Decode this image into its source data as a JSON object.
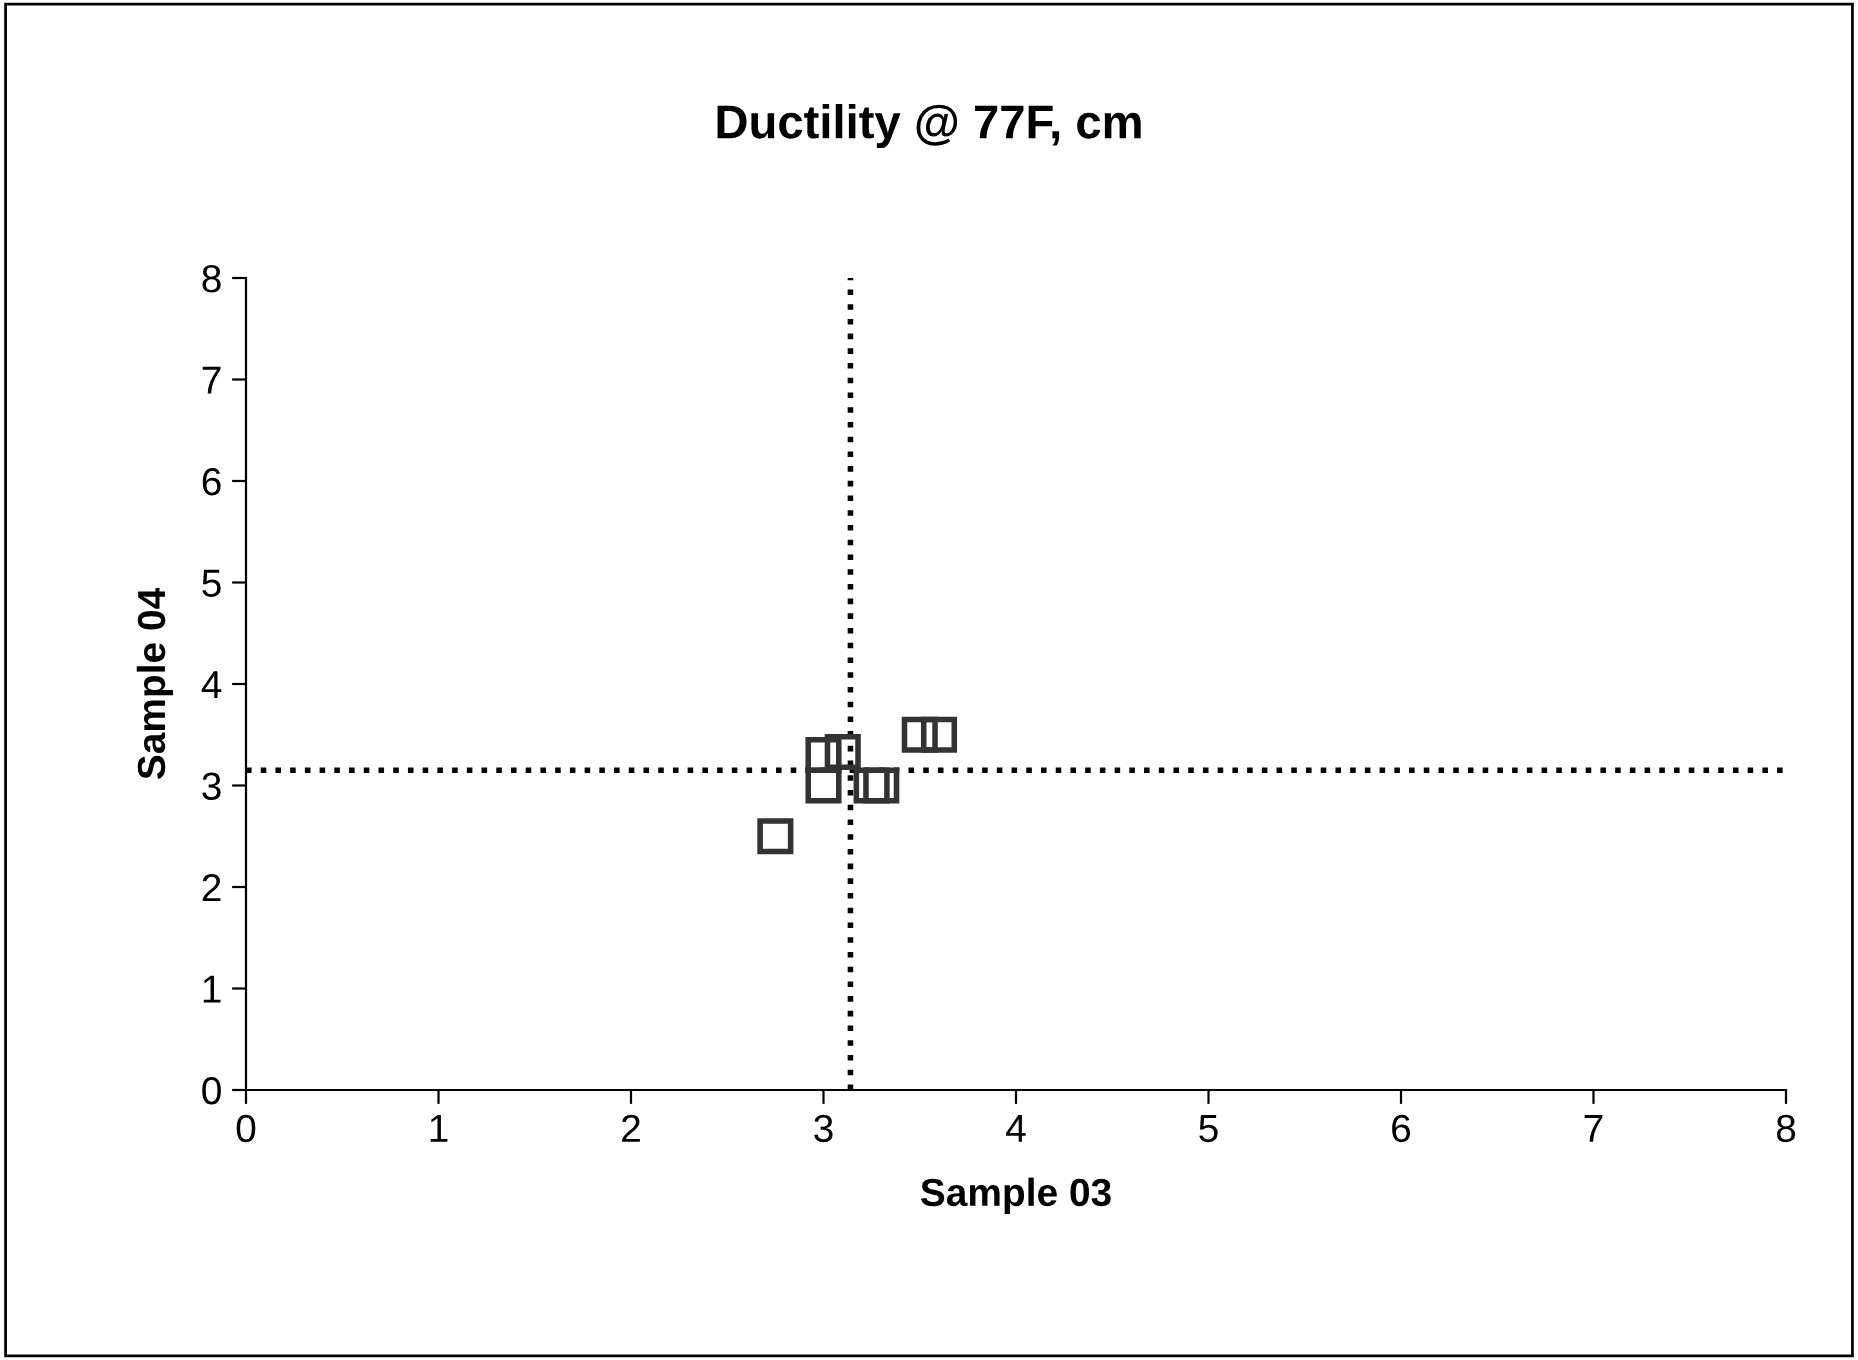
{
  "chart_data": {
    "type": "scatter",
    "title": "Ductility @ 77F, cm",
    "xlabel": "Sample 03",
    "ylabel": "Sample 04",
    "x": [
      2.75,
      3.0,
      3.0,
      3.1,
      3.25,
      3.3,
      3.5,
      3.6
    ],
    "series": [
      {
        "color": "#333333",
        "values": [
          2.5,
          3.0,
          3.3,
          3.33,
          3.0,
          3.0,
          3.5,
          3.5
        ]
      }
    ],
    "marker": "square",
    "xlim": [
      0,
      8
    ],
    "ylim": [
      0,
      8
    ],
    "xticks": [
      0,
      1,
      2,
      3,
      4,
      5,
      6,
      7,
      8
    ],
    "yticks": [
      0,
      1,
      2,
      3,
      4,
      5,
      6,
      7,
      8
    ],
    "grid": false,
    "legend": false,
    "ref_lines": [
      {
        "axis": "x",
        "value": 3.14,
        "line_style": "dotted",
        "color": "#000000"
      },
      {
        "axis": "y",
        "value": 3.15,
        "line_style": "dotted",
        "color": "#000000"
      }
    ]
  }
}
